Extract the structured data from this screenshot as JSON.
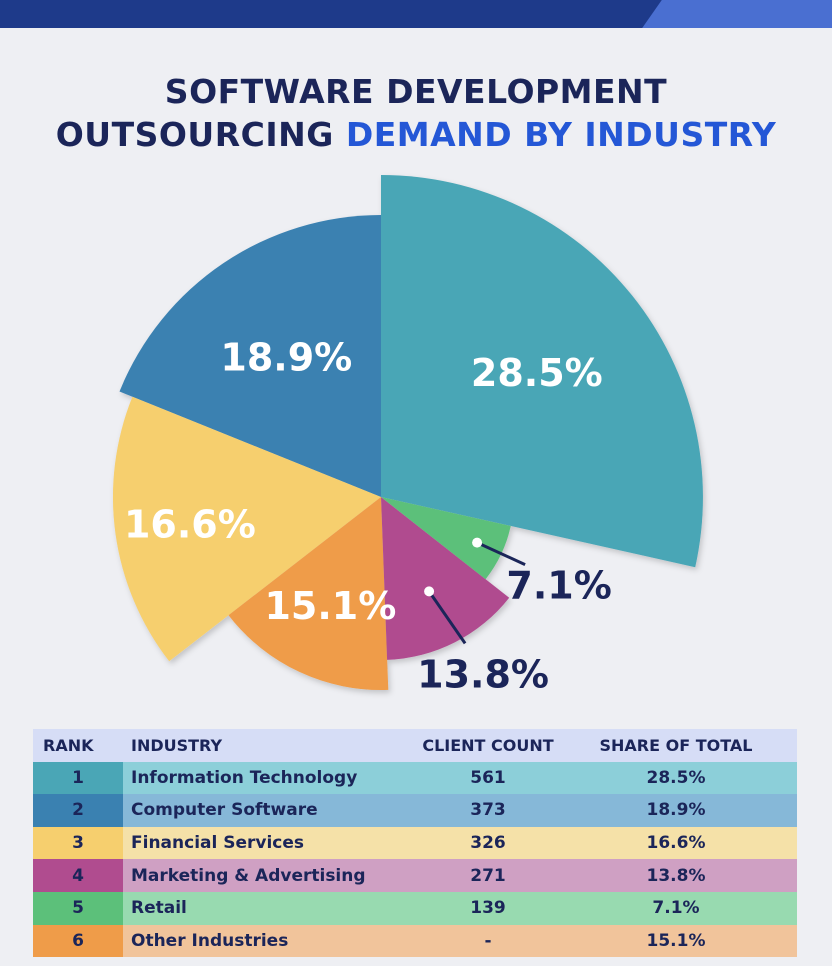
{
  "title": {
    "line1": "SOFTWARE DEVELOPMENT",
    "line2a": "OUTSOURCING ",
    "line2b": "DEMAND BY INDUSTRY"
  },
  "colors": {
    "information_technology": "#4aa6b6",
    "computer_software": "#3a81b1",
    "financial_services": "#f6cf6e",
    "marketing_advertising": "#b04c8f",
    "retail": "#5cc07a",
    "other_industries": "#ef9c49"
  },
  "chart_data": {
    "type": "pie",
    "categories": [
      "Information Technology",
      "Computer Software",
      "Financial Services",
      "Other Industries",
      "Marketing & Advertising",
      "Retail"
    ],
    "values": [
      28.5,
      18.9,
      16.6,
      15.1,
      13.8,
      7.1
    ],
    "labels": [
      "28.5%",
      "18.9%",
      "16.6%",
      "15.1%",
      "13.8%",
      "7.1%"
    ]
  },
  "table": {
    "headers": {
      "rank": "RANK",
      "industry": "INDUSTRY",
      "count": "CLIENT COUNT",
      "share": "SHARE OF TOTAL"
    },
    "rows": [
      {
        "rank": "1",
        "industry": "Information Technology",
        "count": "561",
        "share": "28.5%"
      },
      {
        "rank": "2",
        "industry": "Computer Software",
        "count": "373",
        "share": "18.9%"
      },
      {
        "rank": "3",
        "industry": "Financial Services",
        "count": "326",
        "share": "16.6%"
      },
      {
        "rank": "4",
        "industry": "Marketing & Advertising",
        "count": "271",
        "share": "13.8%"
      },
      {
        "rank": "5",
        "industry": "Retail",
        "count": "139",
        "share": "7.1%"
      },
      {
        "rank": "6",
        "industry": "Other Industries",
        "count": "-",
        "share": "15.1%"
      }
    ]
  }
}
